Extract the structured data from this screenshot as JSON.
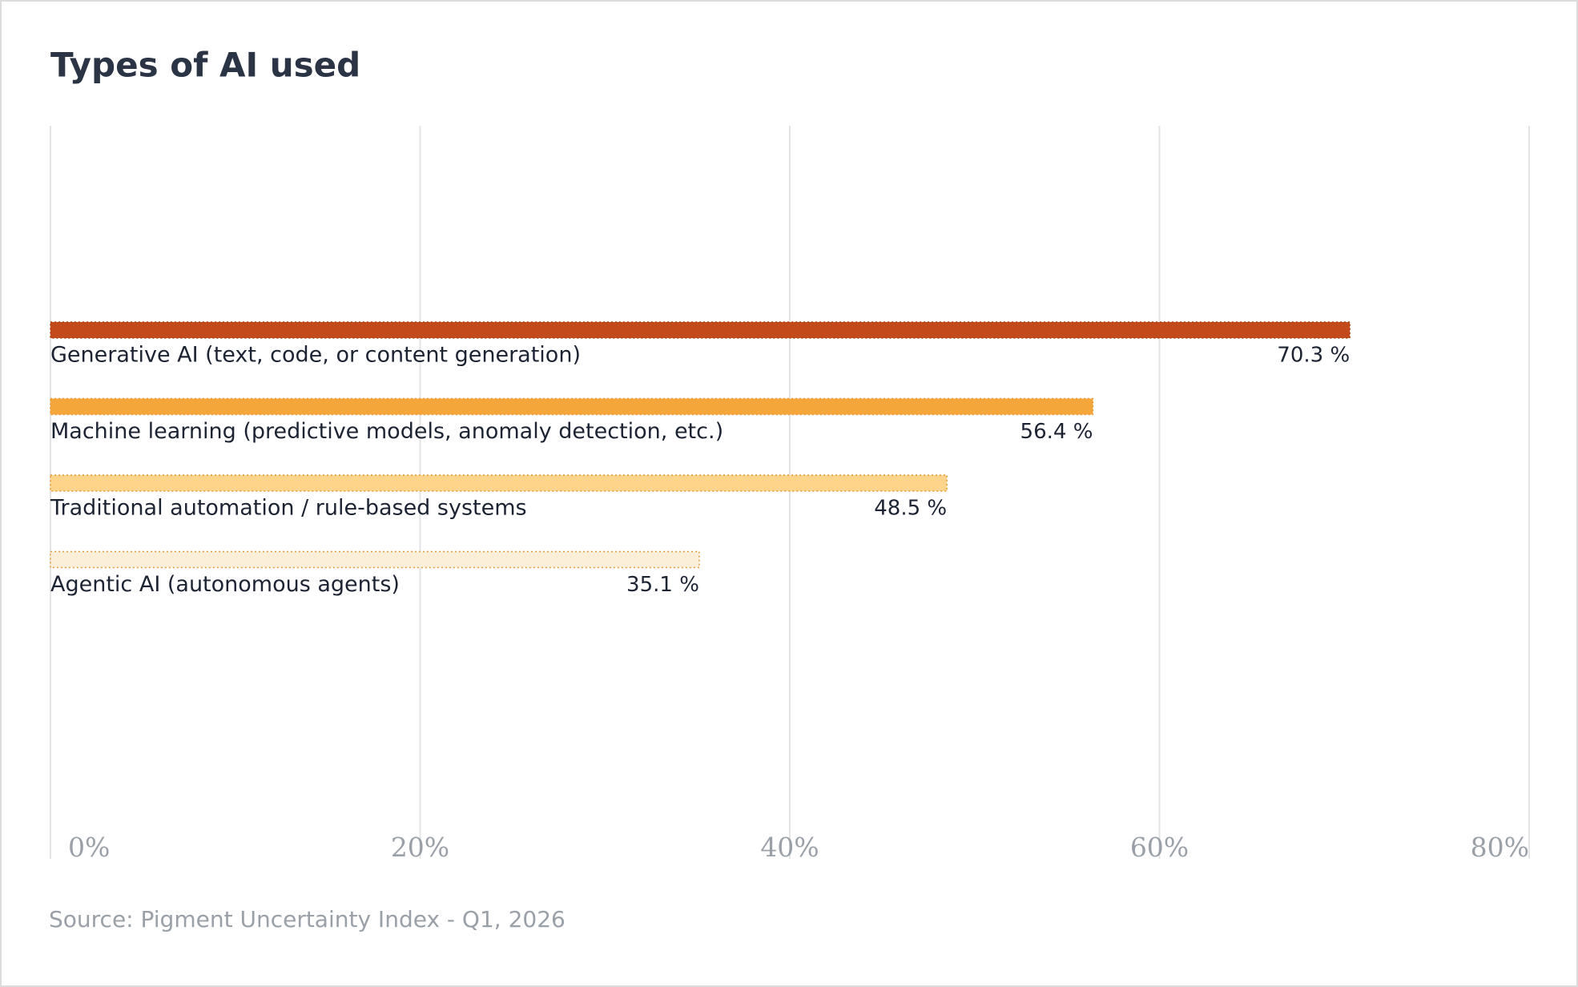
{
  "chart_data": {
    "type": "hbar",
    "title": "Types of AI used",
    "categories": [
      "Generative AI (text, code, or content generation)",
      "Machine learning (predictive models, anomaly detection, etc.)",
      "Traditional automation / rule-based systems",
      "Agentic AI (autonomous agents)"
    ],
    "values": [
      70.3,
      56.4,
      48.5,
      35.1
    ],
    "value_labels": [
      "70.3 %",
      "56.4 %",
      "48.5 %",
      "35.1 %"
    ],
    "colors": [
      "#c24a1b",
      "#f5a63a",
      "#fdd48a",
      "#fcefd9"
    ],
    "xlim": [
      0,
      80
    ],
    "xticks": [
      {
        "value": 0,
        "label": "0%"
      },
      {
        "value": 20,
        "label": "20%"
      },
      {
        "value": 40,
        "label": "40%"
      },
      {
        "value": 60,
        "label": "60%"
      },
      {
        "value": 80,
        "label": "80%"
      }
    ],
    "grid": true,
    "source": "Source: Pigment Uncertainty Index - Q1, 2026"
  }
}
